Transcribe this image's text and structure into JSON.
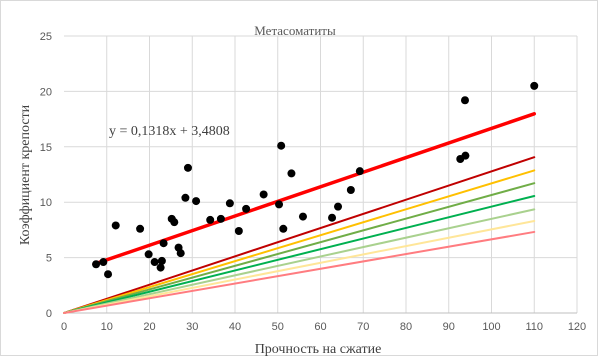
{
  "chart_data": {
    "type": "scatter",
    "title": "Метасоматиты",
    "xlabel": "Прочность на сжатие",
    "ylabel": "Коэффициент крепости",
    "xlim": [
      0,
      120
    ],
    "ylim": [
      0,
      25
    ],
    "xticks": [
      "0",
      "10",
      "20",
      "30",
      "40",
      "50",
      "60",
      "70",
      "80",
      "90",
      "100",
      "110",
      "120"
    ],
    "yticks": [
      "0",
      "5",
      "10",
      "15",
      "20",
      "25"
    ],
    "grid": true,
    "legend": "none",
    "points": [
      {
        "x": 7.5,
        "y": 4.4
      },
      {
        "x": 9.2,
        "y": 4.6
      },
      {
        "x": 10.3,
        "y": 3.5
      },
      {
        "x": 12.1,
        "y": 7.9
      },
      {
        "x": 17.8,
        "y": 7.6
      },
      {
        "x": 19.8,
        "y": 5.3
      },
      {
        "x": 21.2,
        "y": 4.6
      },
      {
        "x": 22.6,
        "y": 4.1
      },
      {
        "x": 22.9,
        "y": 4.7
      },
      {
        "x": 23.3,
        "y": 6.3
      },
      {
        "x": 25.2,
        "y": 8.5
      },
      {
        "x": 25.8,
        "y": 8.2
      },
      {
        "x": 26.8,
        "y": 5.9
      },
      {
        "x": 27.3,
        "y": 5.4
      },
      {
        "x": 28.4,
        "y": 10.4
      },
      {
        "x": 29.0,
        "y": 13.1
      },
      {
        "x": 30.9,
        "y": 10.1
      },
      {
        "x": 34.2,
        "y": 8.4
      },
      {
        "x": 36.7,
        "y": 8.5
      },
      {
        "x": 38.8,
        "y": 9.9
      },
      {
        "x": 40.9,
        "y": 7.4
      },
      {
        "x": 42.6,
        "y": 9.4
      },
      {
        "x": 46.7,
        "y": 10.7
      },
      {
        "x": 50.3,
        "y": 9.8
      },
      {
        "x": 50.8,
        "y": 15.1
      },
      {
        "x": 51.3,
        "y": 7.6
      },
      {
        "x": 53.2,
        "y": 12.6
      },
      {
        "x": 55.9,
        "y": 8.7
      },
      {
        "x": 62.7,
        "y": 8.6
      },
      {
        "x": 64.1,
        "y": 9.6
      },
      {
        "x": 67.1,
        "y": 11.1
      },
      {
        "x": 69.2,
        "y": 12.8
      },
      {
        "x": 92.7,
        "y": 13.9
      },
      {
        "x": 93.8,
        "y": 19.2
      },
      {
        "x": 93.9,
        "y": 14.2
      },
      {
        "x": 110.0,
        "y": 20.5
      }
    ],
    "trendline": {
      "equation": "y = 0,1318x + 3,4808",
      "slope": 0.1318,
      "intercept": 3.4808,
      "x_range": [
        7,
        110
      ],
      "color": "#ff0000"
    },
    "reference_lines": [
      {
        "slope": 0.1278,
        "color": "#c00000"
      },
      {
        "slope": 0.117,
        "color": "#ffc000"
      },
      {
        "slope": 0.1065,
        "color": "#70ad47"
      },
      {
        "slope": 0.096,
        "color": "#00b050"
      },
      {
        "slope": 0.085,
        "color": "#a9d18e"
      },
      {
        "slope": 0.0755,
        "color": "#ffe699"
      },
      {
        "slope": 0.0665,
        "color": "#ff7c80"
      }
    ],
    "reference_x_range": [
      0,
      110
    ],
    "colors": {
      "points": "#000000",
      "grid": "#d9d9d9",
      "axis": "#bfbfbf"
    }
  }
}
